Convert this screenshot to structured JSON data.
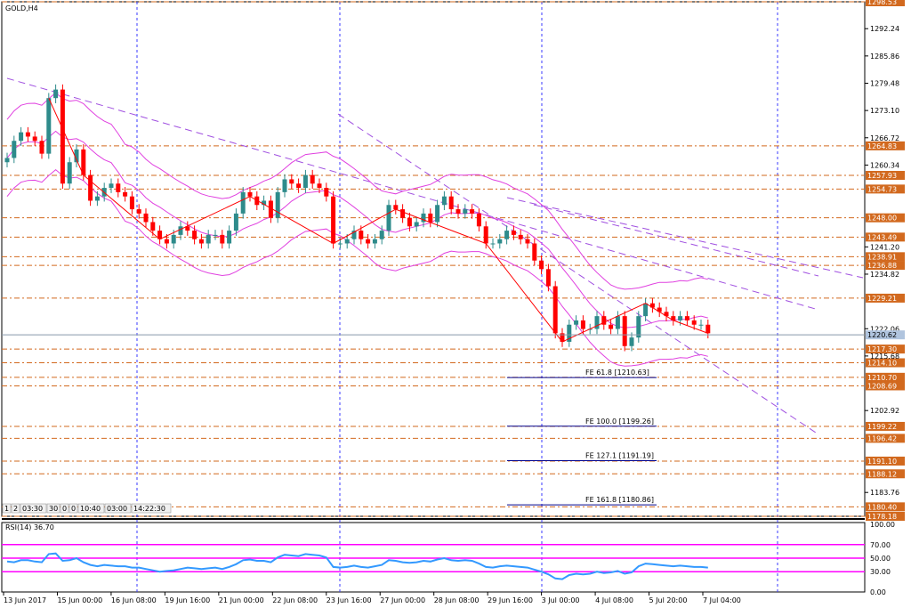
{
  "symbol_label": "GOLD,H4",
  "rsi_label": "RSI(14) 36.70",
  "mini_toolbar": [
    "1",
    "2",
    "03:30",
    "30",
    "0",
    "0",
    "10:40",
    "03:00",
    "14:22:30"
  ],
  "colors": {
    "bull": "#2e8b8b",
    "bear": "#ff0000",
    "grid_vertical": "#3a3aff",
    "level_line": "#d2691e",
    "level_tag_bg": "#d2691e",
    "bands": "#e040e0",
    "channel": "#a050e0",
    "rsi_line": "#3399ff",
    "rsi_levels": "#ff00ff",
    "current_price_line": "#8899aa",
    "current_price_tag_bg": "#b0c4de",
    "fe_line": "#00008b"
  },
  "chart_data": {
    "type": "candlestick",
    "price_axis": [
      "1292.24",
      "1285.86",
      "1279.48",
      "1273.10",
      "1266.72",
      "1260.34",
      "1241.20",
      "1234.82",
      "1222.06",
      "1215.68",
      "1202.92",
      "1183.76"
    ],
    "ylim": [
      1178.18,
      1298.53
    ],
    "time_axis": [
      "13 Jun 2017",
      "15 Jun 00:00",
      "16 Jun 08:00",
      "19 Jun 16:00",
      "21 Jun 00:00",
      "22 Jun 08:00",
      "23 Jun 16:00",
      "27 Jun 00:00",
      "28 Jun 08:00",
      "29 Jun 16:00",
      "3 Jul 00:00",
      "4 Jul 08:00",
      "5 Jul 20:00",
      "7 Jul 04:00"
    ],
    "levels": [
      "1298.53",
      "1264.83",
      "1257.93",
      "1254.73",
      "1248.00",
      "1243.49",
      "1238.91",
      "1236.88",
      "1229.21",
      "1217.30",
      "1214.10",
      "1210.70",
      "1208.69",
      "1199.22",
      "1196.42",
      "1191.10",
      "1188.12",
      "1180.40",
      "1178.18"
    ],
    "current_price": "1220.62",
    "fe_labels": [
      {
        "label": "FE 61.8 [1210.63]",
        "value": 1210.63
      },
      {
        "label": "FE 100.0 [1199.26]",
        "value": 1199.26
      },
      {
        "label": "FE 127.1 [1191.19]",
        "value": 1191.19
      },
      {
        "label": "FE 161.8 [1180.86]",
        "value": 1180.86
      }
    ],
    "closes": [
      1262,
      1266,
      1268,
      1267,
      1266,
      1263,
      1276,
      1278,
      1256,
      1261,
      1264,
      1258,
      1252,
      1253,
      1255,
      1256,
      1254,
      1253,
      1250,
      1249,
      1247,
      1245,
      1243,
      1242,
      1244,
      1246,
      1245,
      1243,
      1242,
      1244,
      1244,
      1242,
      1245,
      1249,
      1254,
      1253,
      1251,
      1252,
      1248,
      1254,
      1257,
      1256,
      1255,
      1258,
      1256,
      1255,
      1253,
      1242,
      1242,
      1243,
      1245,
      1243,
      1242,
      1243,
      1245,
      1251,
      1250,
      1248,
      1246,
      1247,
      1249,
      1247,
      1251,
      1253,
      1250,
      1249,
      1250,
      1249,
      1246,
      1242,
      1242,
      1243,
      1245,
      1244,
      1243,
      1242,
      1238,
      1236,
      1232,
      1221,
      1219,
      1223,
      1224,
      1222,
      1222,
      1225,
      1223,
      1222,
      1225,
      1218,
      1220,
      1225,
      1228,
      1227,
      1226,
      1225,
      1224,
      1225,
      1224,
      1223,
      1223,
      1221
    ],
    "rsi": {
      "ylim": [
        0,
        100
      ],
      "axis": [
        "100.00",
        "70.00",
        "50.00",
        "30.00",
        "0.00"
      ],
      "levels": [
        70,
        50,
        30
      ],
      "values": [
        45,
        44,
        47,
        47,
        45,
        44,
        56,
        57,
        46,
        47,
        50,
        44,
        40,
        38,
        40,
        39,
        38,
        38,
        36,
        36,
        34,
        32,
        30,
        31,
        32,
        34,
        36,
        35,
        34,
        35,
        36,
        34,
        37,
        41,
        47,
        48,
        46,
        46,
        44,
        51,
        55,
        54,
        53,
        56,
        55,
        54,
        51,
        37,
        36,
        37,
        39,
        37,
        36,
        38,
        40,
        47,
        46,
        44,
        43,
        44,
        46,
        45,
        48,
        50,
        47,
        46,
        47,
        46,
        42,
        37,
        36,
        38,
        39,
        38,
        37,
        36,
        33,
        30,
        26,
        20,
        19,
        25,
        27,
        26,
        27,
        30,
        28,
        29,
        31,
        27,
        29,
        38,
        42,
        41,
        40,
        39,
        38,
        39,
        38,
        37,
        37,
        36
      ]
    }
  }
}
